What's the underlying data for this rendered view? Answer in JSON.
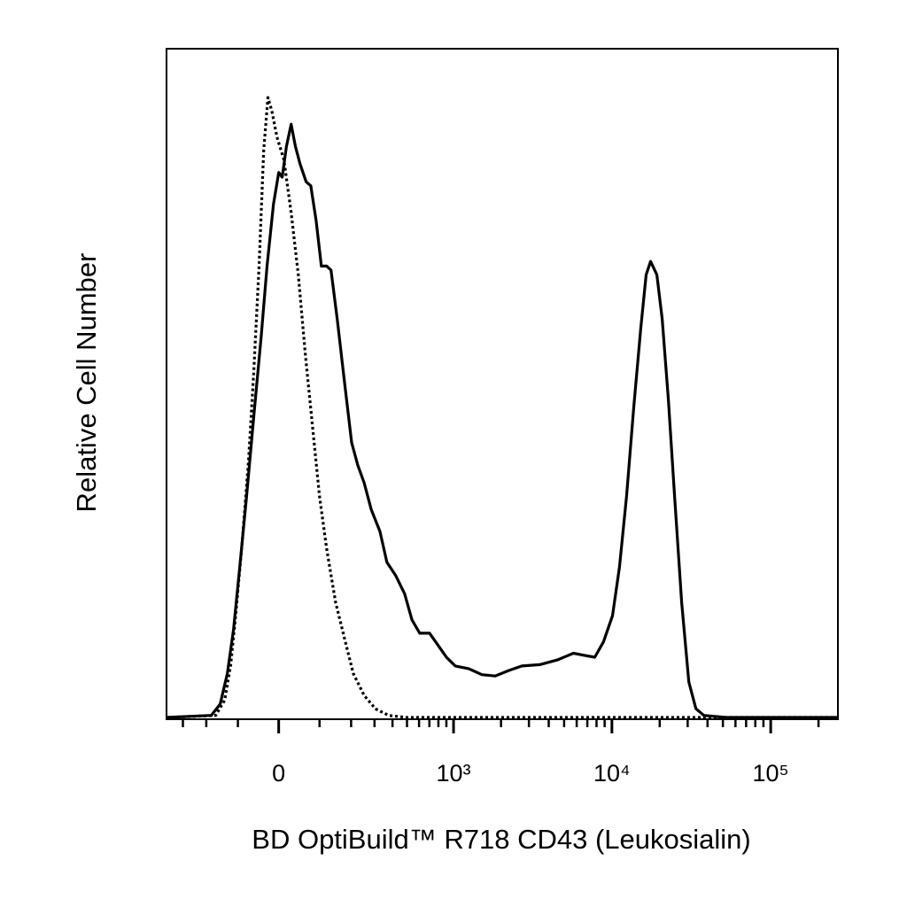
{
  "chart_data": {
    "type": "line",
    "xlabel": "BD OptiBuild™ R718 CD43 (Leukosialin)",
    "ylabel": "Relative Cell Number",
    "xscale": "arcsinh",
    "xlim": [
      -390,
      265000
    ],
    "ylim": [
      0,
      100
    ],
    "xticks": [
      0,
      {
        "value": 1000,
        "label": "10³"
      },
      {
        "value": 10000,
        "label": "10⁴"
      },
      {
        "value": 100000,
        "label": "10⁵"
      }
    ],
    "xminorticks": [
      -300,
      -200,
      -100,
      100,
      200,
      300,
      400,
      500,
      600,
      700,
      800,
      900,
      2000,
      3000,
      4000,
      5000,
      6000,
      7000,
      8000,
      9000,
      20000,
      30000,
      40000,
      50000,
      60000,
      70000,
      80000,
      90000,
      200000
    ],
    "series": [
      {
        "color": "#000000",
        "style": "solid",
        "x": [
          -390,
          -182,
          -152,
          -130,
          -112,
          -95,
          -77,
          -59,
          -41,
          -27,
          -12,
          0,
          8,
          18,
          29,
          39,
          50,
          65,
          77,
          91,
          105,
          120,
          133,
          152,
          176,
          202,
          226,
          252,
          284,
          328,
          366,
          421,
          482,
          539,
          606,
          702,
          790,
          901,
          1026,
          1247,
          1515,
          1839,
          2231,
          2708,
          3509,
          4530,
          5726,
          6667,
          7800,
          8852,
          10080,
          11165,
          12377,
          13733,
          15216,
          16429,
          17513,
          19188,
          20719,
          22665,
          24802,
          27498,
          30496,
          33814,
          37961,
          52316,
          265000
        ],
        "values": [
          0,
          0.3,
          2,
          6.6,
          13.2,
          22.5,
          33.1,
          45.0,
          57.0,
          67.5,
          76.8,
          81.5,
          80.8,
          85.4,
          88.7,
          85.4,
          82.8,
          80.1,
          79.5,
          74.2,
          67.5,
          67.5,
          66.9,
          59.6,
          50.3,
          41.1,
          37.7,
          35.1,
          31.1,
          27.8,
          23.2,
          21.2,
          18.5,
          14.6,
          12.6,
          12.6,
          10.9,
          9.0,
          7.7,
          7.3,
          6.4,
          6.2,
          7.0,
          7.7,
          7.9,
          8.6,
          9.6,
          9.3,
          9.0,
          11.3,
          15.2,
          22.5,
          33.1,
          46.4,
          58.3,
          66.2,
          68.2,
          66.2,
          59.6,
          47.7,
          33.1,
          17.2,
          5.3,
          1.3,
          0.3,
          0,
          0
        ]
      },
      {
        "color": "#000000",
        "style": "dotted",
        "x": [
          -390,
          -167,
          -138,
          -120,
          -105,
          -88,
          -72,
          -59,
          -46,
          -35,
          -25,
          -16,
          -4,
          12,
          29,
          46,
          63,
          81,
          100,
          120,
          147,
          176,
          208,
          252,
          305,
          376,
          496,
          265000
        ],
        "values": [
          0,
          0.3,
          2.6,
          7.9,
          15.9,
          26.5,
          38.4,
          51.7,
          67.5,
          84.8,
          92.7,
          90.7,
          86.8,
          83.4,
          75.5,
          66.2,
          54.3,
          43.7,
          33.1,
          25.2,
          17.2,
          11.9,
          6.6,
          3.3,
          1.3,
          0.3,
          0,
          0
        ]
      }
    ]
  }
}
